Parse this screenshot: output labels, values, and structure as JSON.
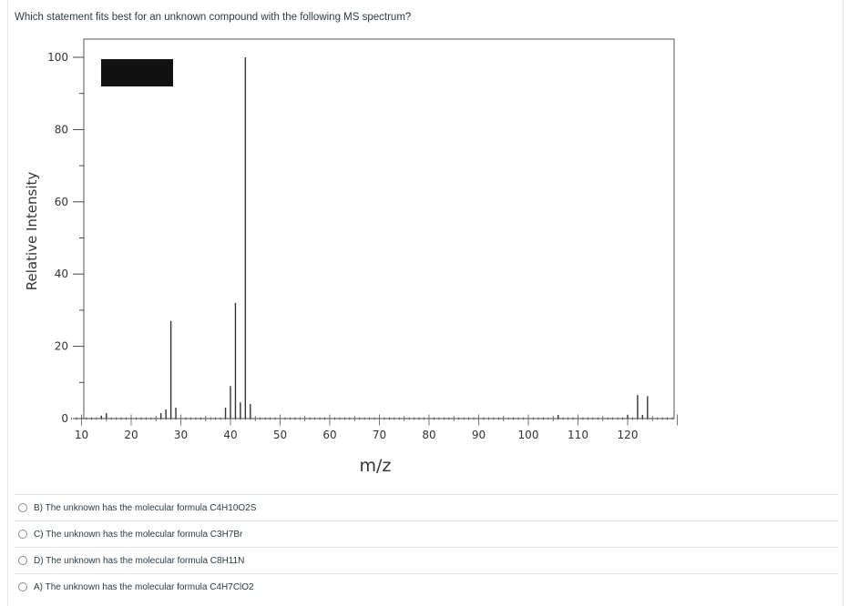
{
  "question": {
    "text": "Which statement fits best for an unknown compound with the following MS spectrum?"
  },
  "answers": [
    {
      "label": "B) The unknown has the molecular formula C4H10O2S"
    },
    {
      "label": "C) The unknown has the molecular formula C3H7Br"
    },
    {
      "label": "D) The unknown has the molecular formula C8H11N"
    },
    {
      "label": "A) The unknown has the molecular formula C4H7ClO2"
    }
  ],
  "chart_data": {
    "type": "bar",
    "title": "",
    "xlabel": "m/z",
    "ylabel": "Relative Intensity",
    "xlim": [
      8,
      130
    ],
    "ylim": [
      0,
      100
    ],
    "x_ticks": [
      "10",
      "20",
      "30",
      "40",
      "50",
      "60",
      "70",
      "80",
      "90",
      "100",
      "110",
      "120"
    ],
    "y_ticks": [
      "0",
      "20",
      "40",
      "60",
      "80",
      "100"
    ],
    "grid": false,
    "legend": "none",
    "redacted_box_color": "#111111",
    "peaks": [
      {
        "mz": 14,
        "intensity": 0.8
      },
      {
        "mz": 15,
        "intensity": 1.5
      },
      {
        "mz": 26,
        "intensity": 1.5
      },
      {
        "mz": 27,
        "intensity": 2.5
      },
      {
        "mz": 28,
        "intensity": 27
      },
      {
        "mz": 29,
        "intensity": 3
      },
      {
        "mz": 39,
        "intensity": 3
      },
      {
        "mz": 40,
        "intensity": 9
      },
      {
        "mz": 41,
        "intensity": 32
      },
      {
        "mz": 42,
        "intensity": 4.5
      },
      {
        "mz": 43,
        "intensity": 100
      },
      {
        "mz": 44,
        "intensity": 4
      },
      {
        "mz": 106,
        "intensity": 1
      },
      {
        "mz": 120,
        "intensity": 1
      },
      {
        "mz": 122,
        "intensity": 6.5
      },
      {
        "mz": 123,
        "intensity": 1
      },
      {
        "mz": 124,
        "intensity": 6.2
      }
    ]
  }
}
